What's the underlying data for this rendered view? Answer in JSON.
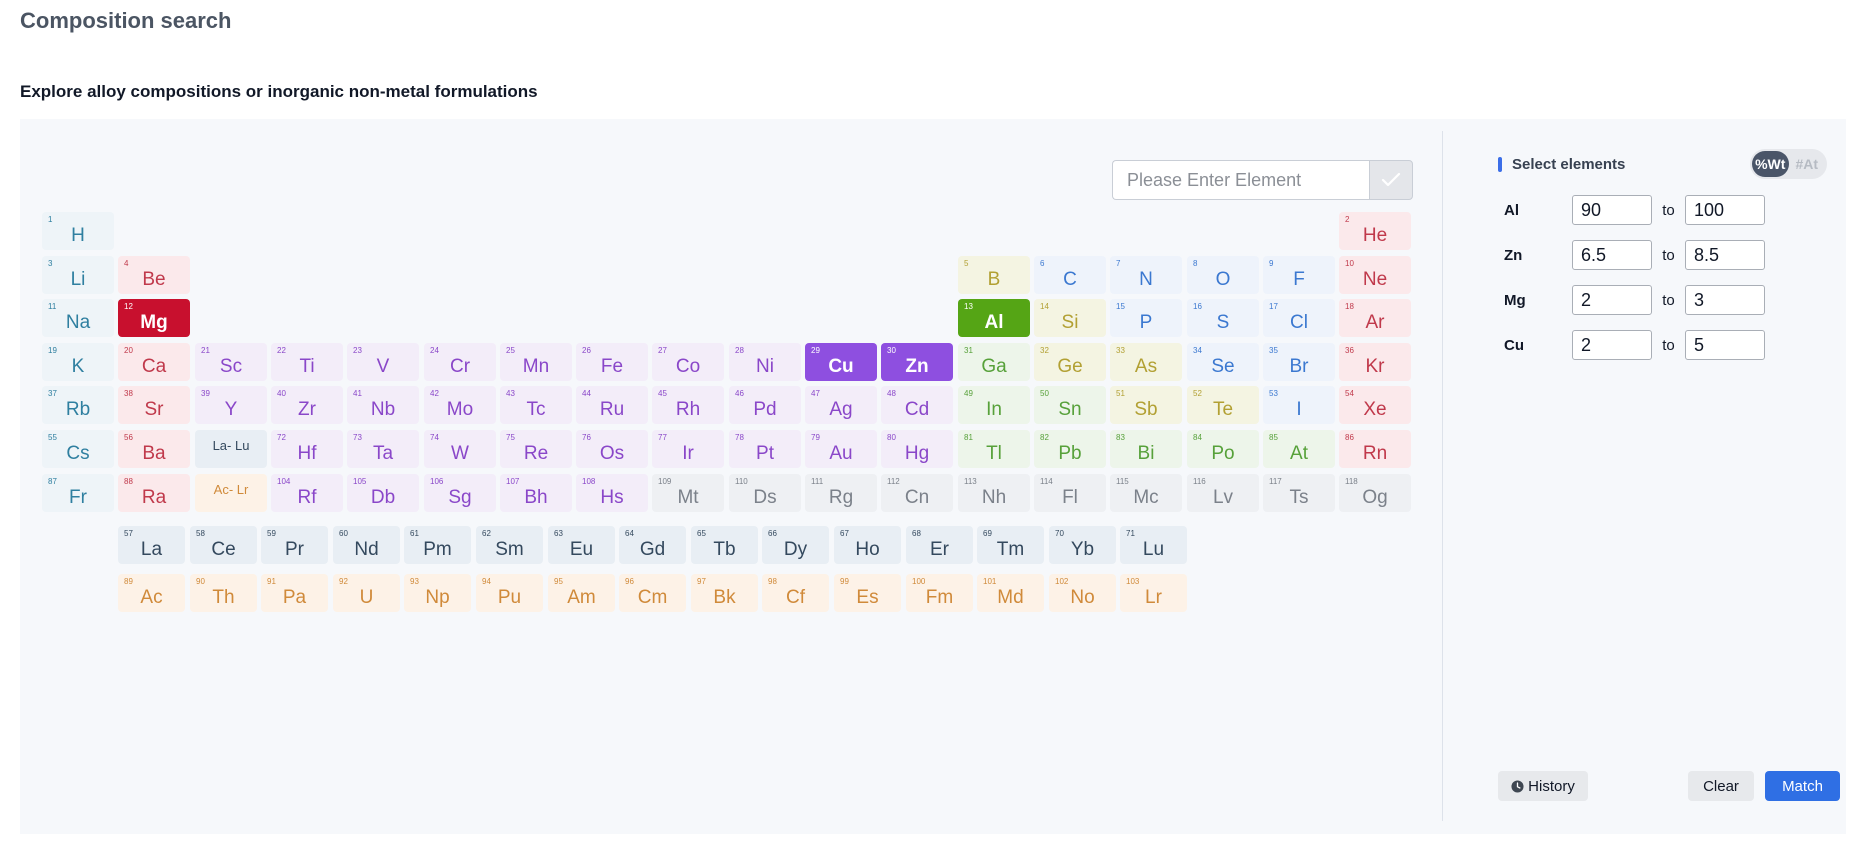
{
  "page": {
    "title": "Composition search",
    "subtitle": "Explore alloy compositions or inorganic non-metal formulations"
  },
  "search": {
    "placeholder": "Please Enter Element",
    "submit_icon": "check-icon"
  },
  "elements": [
    {
      "n": 1,
      "s": "H",
      "r": 1,
      "c": 1,
      "cat": "alkali"
    },
    {
      "n": 2,
      "s": "He",
      "r": 1,
      "c": 18,
      "cat": "noble"
    },
    {
      "n": 3,
      "s": "Li",
      "r": 2,
      "c": 1,
      "cat": "alkali"
    },
    {
      "n": 4,
      "s": "Be",
      "r": 2,
      "c": 2,
      "cat": "alkaline"
    },
    {
      "n": 5,
      "s": "B",
      "r": 2,
      "c": 13,
      "cat": "metalloid"
    },
    {
      "n": 6,
      "s": "C",
      "r": 2,
      "c": 14,
      "cat": "nonmetal"
    },
    {
      "n": 7,
      "s": "N",
      "r": 2,
      "c": 15,
      "cat": "nonmetal"
    },
    {
      "n": 8,
      "s": "O",
      "r": 2,
      "c": 16,
      "cat": "nonmetal"
    },
    {
      "n": 9,
      "s": "F",
      "r": 2,
      "c": 17,
      "cat": "nonmetal"
    },
    {
      "n": 10,
      "s": "Ne",
      "r": 2,
      "c": 18,
      "cat": "noble"
    },
    {
      "n": 11,
      "s": "Na",
      "r": 3,
      "c": 1,
      "cat": "alkali"
    },
    {
      "n": 12,
      "s": "Mg",
      "r": 3,
      "c": 2,
      "cat": "alkaline",
      "selected": true
    },
    {
      "n": 13,
      "s": "Al",
      "r": 3,
      "c": 13,
      "cat": "post",
      "selected": true
    },
    {
      "n": 14,
      "s": "Si",
      "r": 3,
      "c": 14,
      "cat": "metalloid"
    },
    {
      "n": 15,
      "s": "P",
      "r": 3,
      "c": 15,
      "cat": "nonmetal"
    },
    {
      "n": 16,
      "s": "S",
      "r": 3,
      "c": 16,
      "cat": "nonmetal"
    },
    {
      "n": 17,
      "s": "Cl",
      "r": 3,
      "c": 17,
      "cat": "nonmetal"
    },
    {
      "n": 18,
      "s": "Ar",
      "r": 3,
      "c": 18,
      "cat": "noble"
    },
    {
      "n": 19,
      "s": "K",
      "r": 4,
      "c": 1,
      "cat": "alkali"
    },
    {
      "n": 20,
      "s": "Ca",
      "r": 4,
      "c": 2,
      "cat": "alkaline"
    },
    {
      "n": 21,
      "s": "Sc",
      "r": 4,
      "c": 3,
      "cat": "trans"
    },
    {
      "n": 22,
      "s": "Ti",
      "r": 4,
      "c": 4,
      "cat": "trans"
    },
    {
      "n": 23,
      "s": "V",
      "r": 4,
      "c": 5,
      "cat": "trans"
    },
    {
      "n": 24,
      "s": "Cr",
      "r": 4,
      "c": 6,
      "cat": "trans"
    },
    {
      "n": 25,
      "s": "Mn",
      "r": 4,
      "c": 7,
      "cat": "trans"
    },
    {
      "n": 26,
      "s": "Fe",
      "r": 4,
      "c": 8,
      "cat": "trans"
    },
    {
      "n": 27,
      "s": "Co",
      "r": 4,
      "c": 9,
      "cat": "trans"
    },
    {
      "n": 28,
      "s": "Ni",
      "r": 4,
      "c": 10,
      "cat": "trans"
    },
    {
      "n": 29,
      "s": "Cu",
      "r": 4,
      "c": 11,
      "cat": "trans",
      "selected": true
    },
    {
      "n": 30,
      "s": "Zn",
      "r": 4,
      "c": 12,
      "cat": "trans",
      "selected": true
    },
    {
      "n": 31,
      "s": "Ga",
      "r": 4,
      "c": 13,
      "cat": "post"
    },
    {
      "n": 32,
      "s": "Ge",
      "r": 4,
      "c": 14,
      "cat": "metalloid"
    },
    {
      "n": 33,
      "s": "As",
      "r": 4,
      "c": 15,
      "cat": "metalloid"
    },
    {
      "n": 34,
      "s": "Se",
      "r": 4,
      "c": 16,
      "cat": "nonmetal"
    },
    {
      "n": 35,
      "s": "Br",
      "r": 4,
      "c": 17,
      "cat": "nonmetal"
    },
    {
      "n": 36,
      "s": "Kr",
      "r": 4,
      "c": 18,
      "cat": "noble"
    },
    {
      "n": 37,
      "s": "Rb",
      "r": 5,
      "c": 1,
      "cat": "alkali"
    },
    {
      "n": 38,
      "s": "Sr",
      "r": 5,
      "c": 2,
      "cat": "alkaline"
    },
    {
      "n": 39,
      "s": "Y",
      "r": 5,
      "c": 3,
      "cat": "trans"
    },
    {
      "n": 40,
      "s": "Zr",
      "r": 5,
      "c": 4,
      "cat": "trans"
    },
    {
      "n": 41,
      "s": "Nb",
      "r": 5,
      "c": 5,
      "cat": "trans"
    },
    {
      "n": 42,
      "s": "Mo",
      "r": 5,
      "c": 6,
      "cat": "trans"
    },
    {
      "n": 43,
      "s": "Tc",
      "r": 5,
      "c": 7,
      "cat": "trans"
    },
    {
      "n": 44,
      "s": "Ru",
      "r": 5,
      "c": 8,
      "cat": "trans"
    },
    {
      "n": 45,
      "s": "Rh",
      "r": 5,
      "c": 9,
      "cat": "trans"
    },
    {
      "n": 46,
      "s": "Pd",
      "r": 5,
      "c": 10,
      "cat": "trans"
    },
    {
      "n": 47,
      "s": "Ag",
      "r": 5,
      "c": 11,
      "cat": "trans"
    },
    {
      "n": 48,
      "s": "Cd",
      "r": 5,
      "c": 12,
      "cat": "trans"
    },
    {
      "n": 49,
      "s": "In",
      "r": 5,
      "c": 13,
      "cat": "post"
    },
    {
      "n": 50,
      "s": "Sn",
      "r": 5,
      "c": 14,
      "cat": "post"
    },
    {
      "n": 51,
      "s": "Sb",
      "r": 5,
      "c": 15,
      "cat": "metalloid"
    },
    {
      "n": 52,
      "s": "Te",
      "r": 5,
      "c": 16,
      "cat": "metalloid"
    },
    {
      "n": 53,
      "s": "I",
      "r": 5,
      "c": 17,
      "cat": "nonmetal"
    },
    {
      "n": 54,
      "s": "Xe",
      "r": 5,
      "c": 18,
      "cat": "noble"
    },
    {
      "n": 55,
      "s": "Cs",
      "r": 6,
      "c": 1,
      "cat": "alkali"
    },
    {
      "n": 56,
      "s": "Ba",
      "r": 6,
      "c": 2,
      "cat": "alkaline"
    },
    {
      "n": "",
      "s": "La- Lu",
      "r": 6,
      "c": 3,
      "cat": "lanth",
      "placeholder": true
    },
    {
      "n": 72,
      "s": "Hf",
      "r": 6,
      "c": 4,
      "cat": "trans"
    },
    {
      "n": 73,
      "s": "Ta",
      "r": 6,
      "c": 5,
      "cat": "trans"
    },
    {
      "n": 74,
      "s": "W",
      "r": 6,
      "c": 6,
      "cat": "trans"
    },
    {
      "n": 75,
      "s": "Re",
      "r": 6,
      "c": 7,
      "cat": "trans"
    },
    {
      "n": 76,
      "s": "Os",
      "r": 6,
      "c": 8,
      "cat": "trans"
    },
    {
      "n": 77,
      "s": "Ir",
      "r": 6,
      "c": 9,
      "cat": "trans"
    },
    {
      "n": 78,
      "s": "Pt",
      "r": 6,
      "c": 10,
      "cat": "trans"
    },
    {
      "n": 79,
      "s": "Au",
      "r": 6,
      "c": 11,
      "cat": "trans"
    },
    {
      "n": 80,
      "s": "Hg",
      "r": 6,
      "c": 12,
      "cat": "trans"
    },
    {
      "n": 81,
      "s": "Tl",
      "r": 6,
      "c": 13,
      "cat": "post"
    },
    {
      "n": 82,
      "s": "Pb",
      "r": 6,
      "c": 14,
      "cat": "post"
    },
    {
      "n": 83,
      "s": "Bi",
      "r": 6,
      "c": 15,
      "cat": "post"
    },
    {
      "n": 84,
      "s": "Po",
      "r": 6,
      "c": 16,
      "cat": "post"
    },
    {
      "n": 85,
      "s": "At",
      "r": 6,
      "c": 17,
      "cat": "post"
    },
    {
      "n": 86,
      "s": "Rn",
      "r": 6,
      "c": 18,
      "cat": "noble"
    },
    {
      "n": 87,
      "s": "Fr",
      "r": 7,
      "c": 1,
      "cat": "alkali"
    },
    {
      "n": 88,
      "s": "Ra",
      "r": 7,
      "c": 2,
      "cat": "alkaline"
    },
    {
      "n": "",
      "s": "Ac- Lr",
      "r": 7,
      "c": 3,
      "cat": "act",
      "placeholder": true
    },
    {
      "n": 104,
      "s": "Rf",
      "r": 7,
      "c": 4,
      "cat": "trans"
    },
    {
      "n": 105,
      "s": "Db",
      "r": 7,
      "c": 5,
      "cat": "trans"
    },
    {
      "n": 106,
      "s": "Sg",
      "r": 7,
      "c": 6,
      "cat": "trans"
    },
    {
      "n": 107,
      "s": "Bh",
      "r": 7,
      "c": 7,
      "cat": "trans"
    },
    {
      "n": 108,
      "s": "Hs",
      "r": 7,
      "c": 8,
      "cat": "trans"
    },
    {
      "n": 109,
      "s": "Mt",
      "r": 7,
      "c": 9,
      "cat": "unknown"
    },
    {
      "n": 110,
      "s": "Ds",
      "r": 7,
      "c": 10,
      "cat": "unknown"
    },
    {
      "n": 111,
      "s": "Rg",
      "r": 7,
      "c": 11,
      "cat": "unknown"
    },
    {
      "n": 112,
      "s": "Cn",
      "r": 7,
      "c": 12,
      "cat": "unknown"
    },
    {
      "n": 113,
      "s": "Nh",
      "r": 7,
      "c": 13,
      "cat": "unknown"
    },
    {
      "n": 114,
      "s": "Fl",
      "r": 7,
      "c": 14,
      "cat": "unknown"
    },
    {
      "n": 115,
      "s": "Mc",
      "r": 7,
      "c": 15,
      "cat": "unknown"
    },
    {
      "n": 116,
      "s": "Lv",
      "r": 7,
      "c": 16,
      "cat": "unknown"
    },
    {
      "n": 117,
      "s": "Ts",
      "r": 7,
      "c": 17,
      "cat": "unknown"
    },
    {
      "n": 118,
      "s": "Og",
      "r": 7,
      "c": 18,
      "cat": "unknown"
    }
  ],
  "lanthanides": [
    {
      "n": 57,
      "s": "La"
    },
    {
      "n": 58,
      "s": "Ce"
    },
    {
      "n": 59,
      "s": "Pr"
    },
    {
      "n": 60,
      "s": "Nd"
    },
    {
      "n": 61,
      "s": "Pm"
    },
    {
      "n": 62,
      "s": "Sm"
    },
    {
      "n": 63,
      "s": "Eu"
    },
    {
      "n": 64,
      "s": "Gd"
    },
    {
      "n": 65,
      "s": "Tb"
    },
    {
      "n": 66,
      "s": "Dy"
    },
    {
      "n": 67,
      "s": "Ho"
    },
    {
      "n": 68,
      "s": "Er"
    },
    {
      "n": 69,
      "s": "Tm"
    },
    {
      "n": 70,
      "s": "Yb"
    },
    {
      "n": 71,
      "s": "Lu"
    }
  ],
  "actinides": [
    {
      "n": 89,
      "s": "Ac"
    },
    {
      "n": 90,
      "s": "Th"
    },
    {
      "n": 91,
      "s": "Pa"
    },
    {
      "n": 92,
      "s": "U"
    },
    {
      "n": 93,
      "s": "Np"
    },
    {
      "n": 94,
      "s": "Pu"
    },
    {
      "n": 95,
      "s": "Am"
    },
    {
      "n": 96,
      "s": "Cm"
    },
    {
      "n": 97,
      "s": "Bk"
    },
    {
      "n": 98,
      "s": "Cf"
    },
    {
      "n": 99,
      "s": "Es"
    },
    {
      "n": 100,
      "s": "Fm"
    },
    {
      "n": 101,
      "s": "Md"
    },
    {
      "n": 102,
      "s": "No"
    },
    {
      "n": 103,
      "s": "Lr"
    }
  ],
  "selection": {
    "title": "Select elements",
    "unit_toggle": {
      "options": [
        "%Wt",
        "#At"
      ],
      "active": "%Wt"
    },
    "to_label": "to",
    "rows": [
      {
        "element": "Al",
        "min": "90",
        "max": "100"
      },
      {
        "element": "Zn",
        "min": "6.5",
        "max": "8.5"
      },
      {
        "element": "Mg",
        "min": "2",
        "max": "3"
      },
      {
        "element": "Cu",
        "min": "2",
        "max": "5"
      }
    ]
  },
  "actions": {
    "history_label": "History",
    "history_icon": "clock-icon",
    "clear_label": "Clear",
    "match_label": "Match"
  },
  "colors": {
    "accent": "#2f6fe4",
    "selected_mg": "#c8102e",
    "selected_trans": "#8e4fe0",
    "selected_al": "#55a515"
  }
}
